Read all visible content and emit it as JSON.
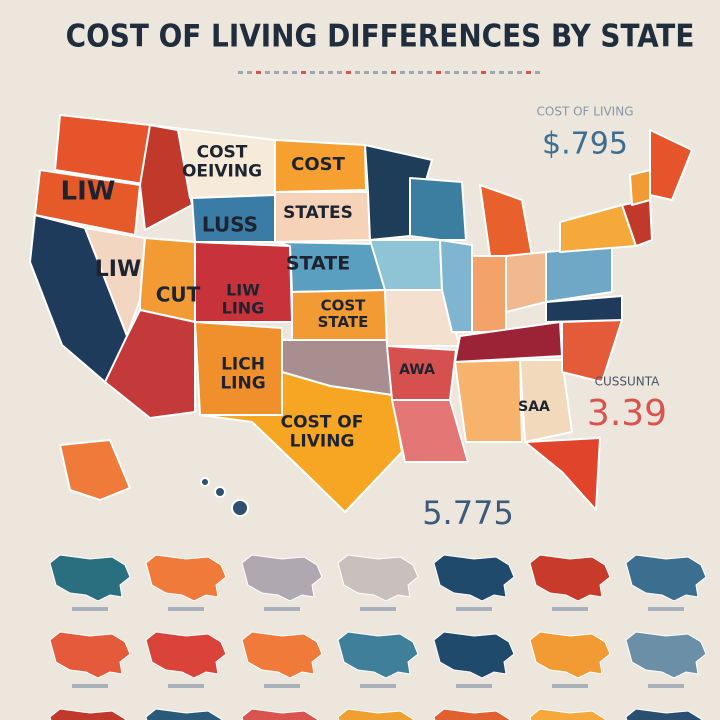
{
  "header": {
    "title": "COST OF LIVING DIFFERENCES BY STATE"
  },
  "map_labels": [
    {
      "lines": [
        "LIW"
      ]
    },
    {
      "lines": [
        "COST",
        "OEIVING"
      ]
    },
    {
      "lines": [
        "COST"
      ]
    },
    {
      "lines": [
        "STATES"
      ]
    },
    {
      "lines": [
        "LUSS"
      ]
    },
    {
      "lines": [
        "STATE"
      ]
    },
    {
      "lines": [
        "LIW"
      ]
    },
    {
      "lines": [
        "CUT"
      ]
    },
    {
      "lines": [
        "LIW",
        "LING"
      ]
    },
    {
      "lines": [
        "COST",
        "STATE"
      ]
    },
    {
      "lines": [
        "LICH",
        "LING"
      ]
    },
    {
      "lines": [
        "COST OF",
        "LIVING"
      ]
    },
    {
      "lines": [
        "AWA"
      ]
    },
    {
      "lines": [
        "SAA"
      ]
    }
  ],
  "side_stats": [
    {
      "label": "COST OF LIVING",
      "value": "$.795"
    },
    {
      "label": "CUSSUNTA",
      "value": "3.39"
    },
    {
      "value": "5.775"
    }
  ]
}
